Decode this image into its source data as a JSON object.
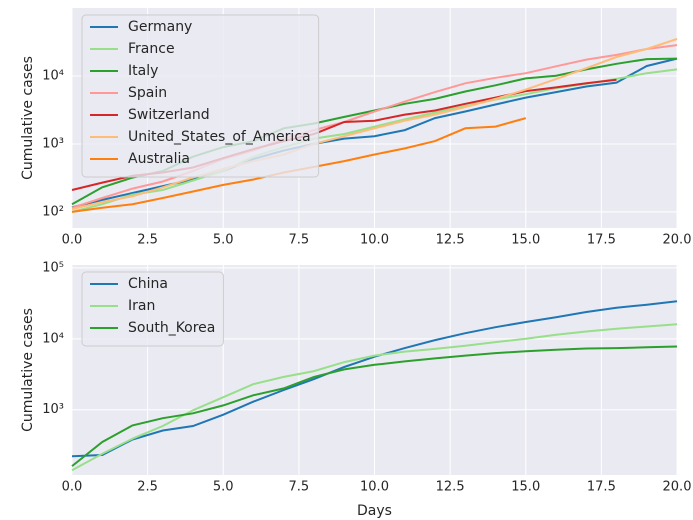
{
  "chart_data": [
    {
      "type": "line",
      "ylabel": "Cumulative cases",
      "yscale": "log",
      "grid": true,
      "legend": "upper-left",
      "x": [
        0,
        1,
        2,
        3,
        4,
        5,
        6,
        7,
        8,
        9,
        10,
        11,
        12,
        13,
        14,
        15,
        16,
        17,
        18,
        19,
        20
      ],
      "xlim": [
        0,
        20
      ],
      "xticks": [
        {
          "value": 0,
          "label": "0.0"
        },
        {
          "value": 2.5,
          "label": "2.5"
        },
        {
          "value": 5,
          "label": "5.0"
        },
        {
          "value": 7.5,
          "label": "7.5"
        },
        {
          "value": 10,
          "label": "10.0"
        },
        {
          "value": 12.5,
          "label": "12.5"
        },
        {
          "value": 15,
          "label": "15.0"
        },
        {
          "value": 17.5,
          "label": "17.5"
        },
        {
          "value": 20,
          "label": "20.0"
        }
      ],
      "ylim": [
        58,
        100000
      ],
      "yticks": [
        {
          "value": 100,
          "label": "10²"
        },
        {
          "value": 1000,
          "label": "10³"
        },
        {
          "value": 10000,
          "label": "10⁴"
        }
      ],
      "series": [
        {
          "name": "Germany",
          "color": "#1f77b4",
          "values": [
            117,
            150,
            190,
            240,
            300,
            400,
            600,
            800,
            1000,
            1200,
            1300,
            1600,
            2400,
            3000,
            3800,
            4800,
            5800,
            7000,
            8000,
            14000,
            18000
          ]
        },
        {
          "name": "France",
          "color": "#98df8a",
          "values": [
            100,
            130,
            180,
            210,
            290,
            400,
            650,
            900,
            1200,
            1400,
            1800,
            2300,
            2900,
            3600,
            4500,
            5400,
            6600,
            7700,
            9100,
            11000,
            12500
          ]
        },
        {
          "name": "Italy",
          "color": "#2ca02c",
          "values": [
            130,
            230,
            320,
            400,
            650,
            900,
            1100,
            1700,
            2000,
            2500,
            3100,
            3900,
            4600,
            5900,
            7300,
            9200,
            10100,
            12500,
            15100,
            17700,
            18000
          ]
        },
        {
          "name": "Spain",
          "color": "#ff9896",
          "values": [
            115,
            160,
            220,
            280,
            400,
            600,
            800,
            1200,
            1600,
            2100,
            3000,
            4200,
            5800,
            7800,
            9400,
            11000,
            13900,
            17400,
            20400,
            24900,
            28500
          ]
        },
        {
          "name": "Switzerland",
          "color": "#d62728",
          "values": [
            210,
            270,
            340,
            380,
            450,
            620,
            840,
            1100,
            1400,
            2100,
            2200,
            2700,
            3100,
            3900,
            4800,
            6000,
            6800,
            7800,
            8800,
            null,
            null
          ]
        },
        {
          "name": "United_States_of_America",
          "color": "#ffbb78",
          "values": [
            110,
            140,
            170,
            230,
            320,
            430,
            560,
            700,
            1000,
            1300,
            1700,
            2200,
            2700,
            3500,
            4600,
            6300,
            9000,
            13000,
            19000,
            25000,
            35000
          ]
        },
        {
          "name": "Australia",
          "color": "#ff7f0e",
          "values": [
            100,
            115,
            130,
            160,
            200,
            250,
            300,
            380,
            460,
            560,
            700,
            860,
            1100,
            1700,
            1800,
            2400,
            null,
            null,
            null,
            null,
            null
          ]
        }
      ]
    },
    {
      "type": "line",
      "ylabel": "Cumulative cases",
      "xlabel": "Days",
      "yscale": "log",
      "grid": true,
      "legend": "upper-left",
      "x": [
        0,
        1,
        2,
        3,
        4,
        5,
        6,
        7,
        8,
        9,
        10,
        11,
        12,
        13,
        14,
        15,
        16,
        17,
        18,
        19,
        20
      ],
      "xlim": [
        0,
        20
      ],
      "xticks": [
        {
          "value": 0,
          "label": "0.0"
        },
        {
          "value": 2.5,
          "label": "2.5"
        },
        {
          "value": 5,
          "label": "5.0"
        },
        {
          "value": 7.5,
          "label": "7.5"
        },
        {
          "value": 10,
          "label": "10.0"
        },
        {
          "value": 12.5,
          "label": "12.5"
        },
        {
          "value": 15,
          "label": "15.0"
        },
        {
          "value": 17.5,
          "label": "17.5"
        },
        {
          "value": 20,
          "label": "20.0"
        }
      ],
      "ylim": [
        120,
        110000
      ],
      "yticks": [
        {
          "value": 1000,
          "label": "10³"
        },
        {
          "value": 10000,
          "label": "10⁴"
        },
        {
          "value": 100000,
          "label": "10⁵"
        }
      ],
      "series": [
        {
          "name": "China",
          "color": "#1f77b4",
          "values": [
            220,
            230,
            380,
            510,
            590,
            850,
            1300,
            1900,
            2700,
            4000,
            5600,
            7400,
            9600,
            12000,
            14600,
            17300,
            20200,
            23900,
            27400,
            30300,
            33800
          ]
        },
        {
          "name": "Iran",
          "color": "#98df8a",
          "values": [
            140,
            240,
            390,
            590,
            980,
            1500,
            2300,
            2900,
            3500,
            4700,
            5800,
            6600,
            7200,
            8000,
            9000,
            10000,
            11400,
            12700,
            13900,
            14900,
            16100
          ]
        },
        {
          "name": "South_Korea",
          "color": "#2ca02c",
          "values": [
            160,
            350,
            600,
            760,
            890,
            1150,
            1600,
            2000,
            2900,
            3700,
            4300,
            4800,
            5300,
            5800,
            6300,
            6700,
            7000,
            7300,
            7400,
            7600,
            7800
          ]
        }
      ]
    }
  ]
}
